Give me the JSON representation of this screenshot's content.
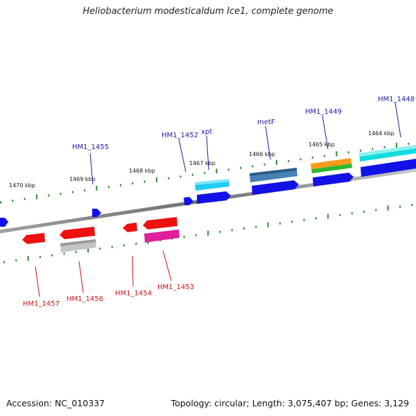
{
  "title": "Heliobacterium modesticaldum Ice1, complete genome",
  "footer": {
    "accession": "Accession: NC_010337",
    "summary": "Topology: circular; Length: 3,075,407 bp; Genes: 3,129"
  },
  "colors": {
    "forward_label": "#1a1aa8",
    "reverse_label": "#cc1111",
    "backbone": "#7a7a7a",
    "tick": "#2a8a2a"
  },
  "scale_labels": [
    "1470 kbp",
    "1469 kbp",
    "1468 kbp",
    "1467 kbp",
    "1466 kbp",
    "1465 kbp",
    "1464 kbp"
  ],
  "genes_forward": [
    {
      "label": "HM1_1455"
    },
    {
      "label": "HM1_1452"
    },
    {
      "label": "xpt"
    },
    {
      "label": "metF"
    },
    {
      "label": "HM1_1449"
    },
    {
      "label": "HM1_1448"
    }
  ],
  "genes_reverse": [
    {
      "label": "HM1_1457"
    },
    {
      "label": "HM1_1456"
    },
    {
      "label": "HM1_1454"
    },
    {
      "label": "HM1_1453"
    }
  ]
}
